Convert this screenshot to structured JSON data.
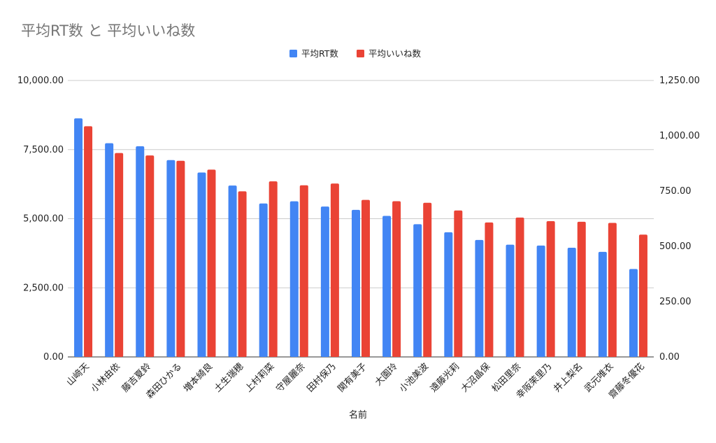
{
  "chart_data": {
    "type": "bar",
    "title": "平均RT数 と 平均いいね数",
    "xlabel": "名前",
    "ylabel_left": "",
    "ylabel_right": "",
    "categories": [
      "山﨑天",
      "小林由依",
      "藤吉夏鈴",
      "森田ひかる",
      "増本綺良",
      "土生瑞穂",
      "上村莉菜",
      "守屋麗奈",
      "田村保乃",
      "関有美子",
      "大園玲",
      "小池美波",
      "遠藤光莉",
      "大沼晶保",
      "松田里奈",
      "幸阪茉里乃",
      "井上梨名",
      "武元唯衣",
      "齋藤冬優花"
    ],
    "series": [
      {
        "name": "平均RT数",
        "axis": "left",
        "color": "#4285f4",
        "values": [
          8630,
          7730,
          7620,
          7120,
          6670,
          6200,
          5550,
          5630,
          5440,
          5320,
          5100,
          4800,
          4510,
          4230,
          4060,
          4030,
          3950,
          3800,
          3180
        ]
      },
      {
        "name": "平均いいね数",
        "axis": "right",
        "color": "#ea4335",
        "values": [
          1043,
          922,
          911,
          887,
          847,
          749,
          794,
          776,
          784,
          710,
          704,
          697,
          662,
          608,
          630,
          614,
          611,
          606,
          553
        ]
      }
    ],
    "left_axis": {
      "min": 0,
      "max": 10000,
      "ticks": [
        "0.00",
        "2,500.00",
        "5,000.00",
        "7,500.00",
        "10,000.00"
      ]
    },
    "right_axis": {
      "min": 0,
      "max": 1250,
      "ticks": [
        "0.00",
        "250.00",
        "500.00",
        "750.00",
        "1,000.00",
        "1,250.00"
      ]
    },
    "grid": true,
    "legend_position": "top-center"
  }
}
